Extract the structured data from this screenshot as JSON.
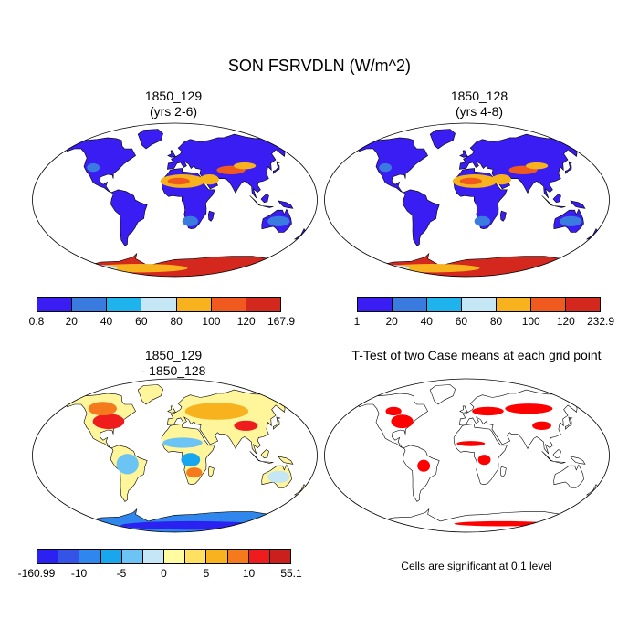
{
  "title": "SON FSRVDLN (W/m^2)",
  "panels": [
    {
      "id": "case1",
      "title_line1": "1850_129",
      "title_line2": "(yrs 2-6)",
      "colorbar": {
        "colors": [
          "#3a1df2",
          "#3a7be0",
          "#1fb3ee",
          "#c4e6f5",
          "#f7b21e",
          "#f05a1e",
          "#d4281e"
        ],
        "labels": [
          "0.8",
          "20",
          "40",
          "60",
          "80",
          "100",
          "120",
          "167.9"
        ]
      }
    },
    {
      "id": "case2",
      "title_line1": "1850_128",
      "title_line2": "(yrs 4-8)",
      "colorbar": {
        "colors": [
          "#3a1df2",
          "#3a7be0",
          "#1fb3ee",
          "#c4e6f5",
          "#f7b21e",
          "#f05a1e",
          "#d4281e"
        ],
        "labels": [
          "1",
          "20",
          "40",
          "60",
          "80",
          "100",
          "120",
          "232.9"
        ]
      }
    },
    {
      "id": "diff",
      "title_line1": "1850_129",
      "title_line2": "- 1850_128",
      "colorbar": {
        "colors": [
          "#2b22f2",
          "#3354e6",
          "#2f86ec",
          "#18a6ee",
          "#6cc4f4",
          "#c4e6f5",
          "#fffba0",
          "#ffe060",
          "#f7b21e",
          "#f57a1e",
          "#ee1c1c",
          "#c9201e"
        ],
        "labels": [
          "-160.99",
          "-10",
          "-5",
          "0",
          "5",
          "10",
          "55.1"
        ]
      }
    },
    {
      "id": "ttest",
      "title_line1": "T-Test of two Case means at each grid point",
      "title_line2": ""
    }
  ],
  "note": "Cells are significant at 0.1 level",
  "colors": {
    "significant": "#ff0000",
    "low": "#3a1df2",
    "high": "#d4281e"
  }
}
